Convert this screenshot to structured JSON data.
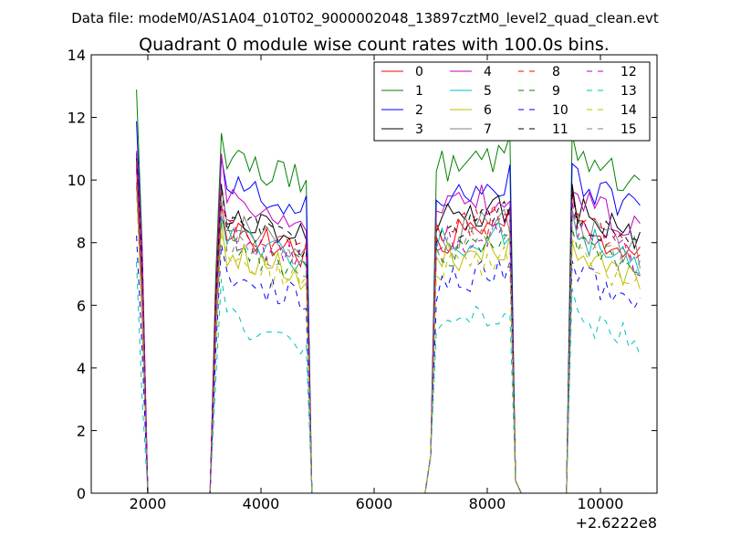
{
  "chart_data": {
    "type": "line",
    "suptitle": "Data file: modeM0/AS1A04_010T02_9000002048_13897cztM0_level2_quad_clean.evt",
    "title": "Quadrant 0 module wise count rates with 100.0s bins.",
    "xlabel": "",
    "ylabel": "",
    "x_offset_label": "+2.6222e8",
    "xlim": [
      1000,
      11000
    ],
    "ylim": [
      0,
      14
    ],
    "x_ticks": [
      2000,
      4000,
      6000,
      8000,
      10000
    ],
    "x_tick_labels": [
      "2000",
      "4000",
      "6000",
      "8000",
      "10000"
    ],
    "y_ticks": [
      0,
      2,
      4,
      6,
      8,
      10,
      12,
      14
    ],
    "y_tick_labels": [
      "0",
      "2",
      "4",
      "6",
      "8",
      "10",
      "12",
      "14"
    ],
    "grid": false,
    "legend_position": "top-right",
    "legend_columns": 4,
    "segments": [
      {
        "start": 1800,
        "end": 1900,
        "drop": 2000
      },
      {
        "start": 3100,
        "end": 4800,
        "rise": 3200,
        "drop": 4900
      },
      {
        "start": 6900,
        "end": 8400,
        "rise": 7100,
        "drop": 8500
      },
      {
        "start": 9300,
        "end": 10600,
        "rise": 9500,
        "drop": 10700
      }
    ],
    "series": [
      {
        "name": "0",
        "color": "#ff0000",
        "dash": "solid",
        "level": 8.5
      },
      {
        "name": "1",
        "color": "#008000",
        "dash": "solid",
        "level": 10.8
      },
      {
        "name": "2",
        "color": "#0000ff",
        "dash": "solid",
        "level": 10.0
      },
      {
        "name": "3",
        "color": "#000000",
        "dash": "solid",
        "level": 9.1
      },
      {
        "name": "4",
        "color": "#bf00bf",
        "dash": "solid",
        "level": 9.4
      },
      {
        "name": "5",
        "color": "#00bfbf",
        "dash": "solid",
        "level": 8.3
      },
      {
        "name": "6",
        "color": "#bfbf00",
        "dash": "solid",
        "level": 7.8
      },
      {
        "name": "7",
        "color": "#808080",
        "dash": "solid",
        "level": 8.6
      },
      {
        "name": "8",
        "color": "#ff0000",
        "dash": "dashed",
        "level": 8.7
      },
      {
        "name": "9",
        "color": "#008000",
        "dash": "dashed",
        "level": 8.0
      },
      {
        "name": "10",
        "color": "#0000ff",
        "dash": "dashed",
        "level": 7.0
      },
      {
        "name": "11",
        "color": "#000000",
        "dash": "dashed",
        "level": 8.8
      },
      {
        "name": "12",
        "color": "#bf00bf",
        "dash": "dashed",
        "level": 8.4
      },
      {
        "name": "13",
        "color": "#00bfbf",
        "dash": "dashed",
        "level": 5.7
      },
      {
        "name": "14",
        "color": "#bfbf00",
        "dash": "dashed",
        "level": 7.6
      },
      {
        "name": "15",
        "color": "#808080",
        "dash": "dashed",
        "level": 8.2
      }
    ]
  }
}
